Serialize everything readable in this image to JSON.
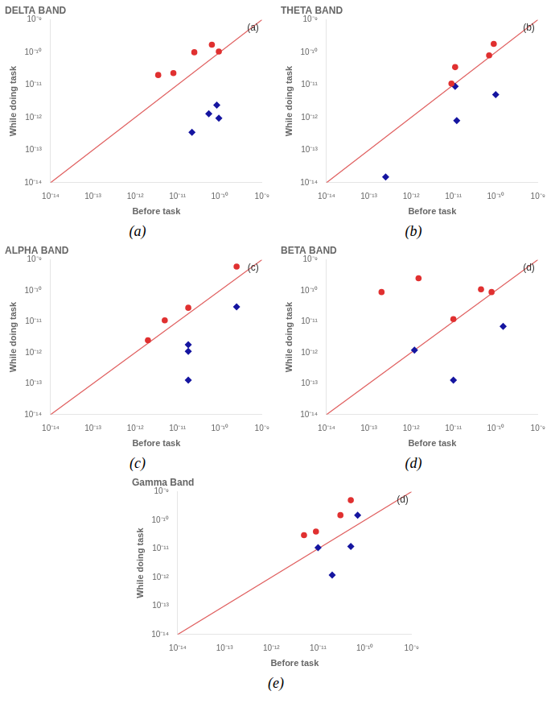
{
  "chart_data": [
    {
      "type": "scatter",
      "title": "DELTA BAND",
      "xlabel": "Before task",
      "ylabel": "While doing task",
      "annotations": [
        "(a)",
        "(a)"
      ],
      "log": true,
      "grid": false,
      "xlim": [
        1e-14,
        1e-09
      ],
      "ylim": [
        1e-14,
        1e-09
      ],
      "xticks": [
        {
          "value": 1e-14,
          "label": "10⁻¹⁴"
        },
        {
          "value": 1e-13,
          "label": "10⁻¹³"
        },
        {
          "value": 1e-12,
          "label": "10⁻¹²"
        },
        {
          "value": 1e-11,
          "label": "10⁻¹¹"
        },
        {
          "value": 1e-10,
          "label": "10⁻¹⁰"
        },
        {
          "value": 1e-09,
          "label": "10⁻⁹"
        }
      ],
      "yticks": [
        {
          "value": 1e-14,
          "label": "10⁻¹⁴"
        },
        {
          "value": 1e-13,
          "label": "10⁻¹³"
        },
        {
          "value": 1e-12,
          "label": "10⁻¹²"
        },
        {
          "value": 1e-11,
          "label": "10⁻¹¹"
        },
        {
          "value": 1e-10,
          "label": "10⁻¹⁰"
        },
        {
          "value": 1e-09,
          "label": "10⁻⁹"
        }
      ],
      "series": [
        {
          "type": "line",
          "color": "#e06060",
          "x": [
            1e-14,
            1e-09
          ],
          "y": [
            1e-14,
            1e-09
          ]
        },
        {
          "type": "scatter",
          "marker": "circle",
          "color": "#e03030",
          "x": [
            3.5e-12,
            8e-12,
            2.5e-11,
            6.5e-11,
            9.5e-11
          ],
          "y": [
            2e-11,
            2.3e-11,
            1e-10,
            1.7e-10,
            1.05e-10
          ]
        },
        {
          "type": "scatter",
          "marker": "diamond",
          "color": "#1515a0",
          "x": [
            2.2e-11,
            5.5e-11,
            8.5e-11,
            9.5e-11
          ],
          "y": [
            3.5e-13,
            1.3e-12,
            2.4e-12,
            9.5e-13
          ]
        }
      ]
    },
    {
      "type": "scatter",
      "title": "THETA BAND",
      "xlabel": "Before task",
      "ylabel": "While doing task",
      "annotations": [
        "(b)",
        "(b)"
      ],
      "log": true,
      "grid": false,
      "xlim": [
        1e-14,
        1e-09
      ],
      "ylim": [
        1e-14,
        1e-09
      ],
      "xticks": [
        {
          "value": 1e-14,
          "label": "10⁻¹⁴"
        },
        {
          "value": 1e-13,
          "label": "10⁻¹³"
        },
        {
          "value": 1e-12,
          "label": "10⁻¹²"
        },
        {
          "value": 1e-11,
          "label": "10⁻¹¹"
        },
        {
          "value": 1e-10,
          "label": "10⁻¹⁰"
        },
        {
          "value": 1e-09,
          "label": "10⁻⁹"
        }
      ],
      "yticks": [
        {
          "value": 1e-14,
          "label": "10⁻¹⁴"
        },
        {
          "value": 1e-13,
          "label": "10⁻¹³"
        },
        {
          "value": 1e-12,
          "label": "10⁻¹²"
        },
        {
          "value": 1e-11,
          "label": "10⁻¹¹"
        },
        {
          "value": 1e-10,
          "label": "10⁻¹⁰"
        },
        {
          "value": 1e-09,
          "label": "10⁻⁹"
        }
      ],
      "series": [
        {
          "type": "line",
          "color": "#e06060",
          "x": [
            1e-14,
            1e-09
          ],
          "y": [
            1e-14,
            1e-09
          ]
        },
        {
          "type": "scatter",
          "marker": "circle",
          "color": "#e03030",
          "x": [
            9e-12,
            1.1e-11,
            7e-11,
            9e-11
          ],
          "y": [
            1.1e-11,
            3.5e-11,
            8e-11,
            1.8e-10
          ]
        },
        {
          "type": "scatter",
          "marker": "diamond",
          "color": "#1515a0",
          "x": [
            2.5e-13,
            1.2e-11,
            1.1e-11,
            1e-10
          ],
          "y": [
            1.5e-14,
            8e-13,
            9e-12,
            5e-12
          ]
        }
      ]
    },
    {
      "type": "scatter",
      "title": "ALPHA BAND",
      "xlabel": "Before task",
      "ylabel": "While doing task",
      "annotations": [
        "(c)",
        "(c)"
      ],
      "log": true,
      "grid": false,
      "xlim": [
        1e-14,
        1e-09
      ],
      "ylim": [
        1e-14,
        1e-09
      ],
      "xticks": [
        {
          "value": 1e-14,
          "label": "10⁻¹⁴"
        },
        {
          "value": 1e-13,
          "label": "10⁻¹³"
        },
        {
          "value": 1e-12,
          "label": "10⁻¹²"
        },
        {
          "value": 1e-11,
          "label": "10⁻¹¹"
        },
        {
          "value": 1e-10,
          "label": "10⁻¹⁰"
        },
        {
          "value": 1e-09,
          "label": "10⁻⁹"
        }
      ],
      "yticks": [
        {
          "value": 1e-14,
          "label": "10⁻¹⁴"
        },
        {
          "value": 1e-13,
          "label": "10⁻¹³"
        },
        {
          "value": 1e-12,
          "label": "10⁻¹²"
        },
        {
          "value": 1e-11,
          "label": "10⁻¹¹"
        },
        {
          "value": 1e-10,
          "label": "10⁻¹⁰"
        },
        {
          "value": 1e-09,
          "label": "10⁻⁹"
        }
      ],
      "series": [
        {
          "type": "line",
          "color": "#e06060",
          "x": [
            1e-14,
            1e-09
          ],
          "y": [
            1e-14,
            1e-09
          ]
        },
        {
          "type": "scatter",
          "marker": "circle",
          "color": "#e03030",
          "x": [
            2e-12,
            5e-12,
            1.8e-11,
            2.5e-10
          ],
          "y": [
            2.5e-12,
            1.1e-11,
            2.8e-11,
            6e-10
          ]
        },
        {
          "type": "scatter",
          "marker": "diamond",
          "color": "#1515a0",
          "x": [
            1.8e-11,
            1.8e-11,
            1.8e-11,
            2.5e-10
          ],
          "y": [
            1.3e-13,
            1.1e-12,
            1.8e-12,
            3e-11
          ]
        }
      ]
    },
    {
      "type": "scatter",
      "title": "BETA BAND",
      "xlabel": "Before task",
      "ylabel": "While doing task",
      "annotations": [
        "(d)",
        "(d)"
      ],
      "log": true,
      "grid": false,
      "xlim": [
        1e-14,
        1e-09
      ],
      "ylim": [
        1e-14,
        1e-09
      ],
      "xticks": [
        {
          "value": 1e-14,
          "label": "10⁻¹⁴"
        },
        {
          "value": 1e-13,
          "label": "10⁻¹³"
        },
        {
          "value": 1e-12,
          "label": "10⁻¹²"
        },
        {
          "value": 1e-11,
          "label": "10⁻¹¹"
        },
        {
          "value": 1e-10,
          "label": "10⁻¹⁰"
        },
        {
          "value": 1e-09,
          "label": "10⁻⁹"
        }
      ],
      "yticks": [
        {
          "value": 1e-14,
          "label": "10⁻¹⁴"
        },
        {
          "value": 1e-13,
          "label": "10⁻¹³"
        },
        {
          "value": 1e-12,
          "label": "10⁻¹²"
        },
        {
          "value": 1e-11,
          "label": "10⁻¹¹"
        },
        {
          "value": 1e-10,
          "label": "10⁻¹⁰"
        },
        {
          "value": 1e-09,
          "label": "10⁻⁹"
        }
      ],
      "series": [
        {
          "type": "line",
          "color": "#e06060",
          "x": [
            1e-14,
            1e-09
          ],
          "y": [
            1e-14,
            1e-09
          ]
        },
        {
          "type": "scatter",
          "marker": "circle",
          "color": "#e03030",
          "x": [
            2e-13,
            1.5e-12,
            1e-11,
            4.5e-11,
            8e-11
          ],
          "y": [
            9e-11,
            2.5e-10,
            1.2e-11,
            1.1e-10,
            9e-11
          ]
        },
        {
          "type": "scatter",
          "marker": "diamond",
          "color": "#1515a0",
          "x": [
            1.2e-12,
            1e-11,
            1.5e-10
          ],
          "y": [
            1.2e-12,
            1.3e-13,
            7e-12
          ]
        }
      ]
    },
    {
      "type": "scatter",
      "title": "Gamma Band",
      "xlabel": "Before task",
      "ylabel": "While doing task",
      "annotations": [
        "(d)",
        "(e)"
      ],
      "log": true,
      "grid": false,
      "xlim": [
        1e-14,
        1e-09
      ],
      "ylim": [
        1e-14,
        1e-09
      ],
      "xticks": [
        {
          "value": 1e-14,
          "label": "10⁻¹⁴"
        },
        {
          "value": 1e-13,
          "label": "10⁻¹³"
        },
        {
          "value": 1e-12,
          "label": "10⁻¹²"
        },
        {
          "value": 1e-11,
          "label": "10⁻¹¹"
        },
        {
          "value": 1e-10,
          "label": "10⁻¹⁰"
        },
        {
          "value": 1e-09,
          "label": "10⁻⁹"
        }
      ],
      "yticks": [
        {
          "value": 1e-14,
          "label": "10⁻¹⁴"
        },
        {
          "value": 1e-13,
          "label": "10⁻¹³"
        },
        {
          "value": 1e-12,
          "label": "10⁻¹²"
        },
        {
          "value": 1e-11,
          "label": "10⁻¹¹"
        },
        {
          "value": 1e-10,
          "label": "10⁻¹⁰"
        },
        {
          "value": 1e-09,
          "label": "10⁻⁹"
        }
      ],
      "series": [
        {
          "type": "line",
          "color": "#e06060",
          "x": [
            1e-14,
            1e-09
          ],
          "y": [
            1e-14,
            1e-09
          ]
        },
        {
          "type": "scatter",
          "marker": "circle",
          "color": "#e03030",
          "x": [
            5e-12,
            9e-12,
            3e-11,
            5e-11
          ],
          "y": [
            3e-11,
            4e-11,
            1.5e-10,
            5e-10
          ]
        },
        {
          "type": "scatter",
          "marker": "diamond",
          "color": "#1515a0",
          "x": [
            1e-11,
            2e-11,
            5e-11,
            7e-11
          ],
          "y": [
            1.1e-11,
            1.2e-12,
            1.2e-11,
            1.5e-10
          ]
        }
      ]
    }
  ]
}
